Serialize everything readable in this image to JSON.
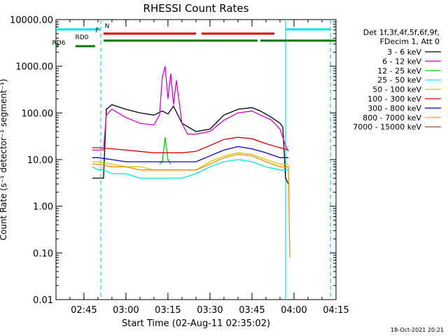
{
  "chart_data": {
    "type": "line",
    "title": "RHESSI Count Rates",
    "xlabel": "Start Time (02-Aug-11 02:35:02)",
    "ylabel": "Count Rate (s⁻¹ detector⁻¹ segment⁻¹)",
    "y_scale": "log",
    "ylim": [
      0.01,
      10000
    ],
    "xlim": [
      "02:35:02",
      "04:15"
    ],
    "x_ticks": [
      "02:45",
      "03:00",
      "03:15",
      "03:30",
      "03:45",
      "04:00",
      "04:15"
    ],
    "y_ticks": [
      "0.01",
      "0.10",
      "1.00",
      "10.00",
      "100.00",
      "1000.00",
      "10000.00"
    ],
    "legend_header": [
      "Det 1f,3f,4f,5f,6f,9f,",
      "FDecim 1, Att 0"
    ],
    "legend_position": "right",
    "timestamp": "18-Oct-2021 20:21",
    "series": [
      {
        "name": "3 - 6 keV",
        "color": "#000000",
        "x": [
          "02:48",
          "02:50",
          "02:52",
          "02:53",
          "02:55",
          "03:00",
          "03:05",
          "03:10",
          "03:13",
          "03:15",
          "03:17",
          "03:20",
          "03:25",
          "03:30",
          "03:35",
          "03:40",
          "03:45",
          "03:48",
          "03:52",
          "03:55",
          "03:56",
          "03:57",
          "03:58"
        ],
        "values": [
          4,
          4,
          4,
          120,
          150,
          120,
          100,
          90,
          110,
          95,
          140,
          60,
          40,
          45,
          90,
          120,
          130,
          110,
          80,
          60,
          50,
          4,
          3
        ]
      },
      {
        "name": "6 - 12 keV",
        "color": "#dd00dd",
        "x": [
          "02:48",
          "02:50",
          "02:52",
          "02:53",
          "02:55",
          "03:00",
          "03:05",
          "03:10",
          "03:12",
          "03:13",
          "03:14",
          "03:15",
          "03:16",
          "03:17",
          "03:18",
          "03:20",
          "03:22",
          "03:25",
          "03:30",
          "03:35",
          "03:40",
          "03:45",
          "03:48",
          "03:52",
          "03:55",
          "03:57",
          "03:58"
        ],
        "values": [
          16,
          16,
          16,
          90,
          120,
          80,
          60,
          55,
          90,
          600,
          1000,
          200,
          700,
          150,
          500,
          60,
          35,
          35,
          40,
          70,
          100,
          110,
          90,
          70,
          45,
          20,
          15
        ]
      },
      {
        "name": "12 - 25 keV",
        "color": "#00cc00",
        "x": [
          "03:12",
          "03:13",
          "03:14",
          "03:15",
          "03:16"
        ],
        "values": [
          8,
          9,
          30,
          10,
          8
        ]
      },
      {
        "name": "25 - 50 keV",
        "color": "#00e5e5",
        "x": [
          "02:48",
          "02:50",
          "02:52",
          "02:55",
          "03:00",
          "03:05",
          "03:10",
          "03:15",
          "03:20",
          "03:25",
          "03:30",
          "03:35",
          "03:40",
          "03:45",
          "03:50",
          "03:55",
          "03:58"
        ],
        "values": [
          7,
          6,
          6,
          5,
          5,
          4,
          4,
          4,
          4,
          5,
          7,
          9,
          10,
          9,
          7,
          6,
          6
        ]
      },
      {
        "name": "50 - 100 keV",
        "color": "#d6c800",
        "x": [
          "02:48",
          "02:50",
          "02:55",
          "03:00",
          "03:05",
          "03:10",
          "03:15",
          "03:20",
          "03:25",
          "03:30",
          "03:35",
          "03:40",
          "03:45",
          "03:50",
          "03:55",
          "03:58"
        ],
        "values": [
          9,
          9,
          8,
          7,
          7,
          6,
          6,
          6,
          6,
          9,
          12,
          14,
          13,
          10,
          8,
          8
        ]
      },
      {
        "name": "100 - 300 keV",
        "color": "#dd0000",
        "x": [
          "02:48",
          "02:50",
          "02:55",
          "03:00",
          "03:05",
          "03:10",
          "03:15",
          "03:20",
          "03:25",
          "03:30",
          "03:35",
          "03:40",
          "03:45",
          "03:50",
          "03:55",
          "03:58"
        ],
        "values": [
          18,
          18,
          17,
          16,
          15,
          14,
          14,
          14,
          15,
          20,
          27,
          30,
          28,
          22,
          18,
          16
        ]
      },
      {
        "name": "300 - 800 keV",
        "color": "#0000dd",
        "x": [
          "02:48",
          "02:50",
          "02:55",
          "03:00",
          "03:05",
          "03:10",
          "03:15",
          "03:20",
          "03:25",
          "03:30",
          "03:35",
          "03:40",
          "03:45",
          "03:50",
          "03:55",
          "03:58"
        ],
        "values": [
          11,
          11,
          10,
          9,
          9,
          9,
          9,
          9,
          9,
          12,
          16,
          19,
          17,
          14,
          11,
          11
        ]
      },
      {
        "name": "800 - 7000 keV",
        "color": "#ff8c00",
        "x": [
          "02:48",
          "02:50",
          "02:55",
          "03:00",
          "03:05",
          "03:10",
          "03:15",
          "03:20",
          "03:25",
          "03:30",
          "03:35",
          "03:40",
          "03:45",
          "03:50",
          "03:55",
          "03:58",
          "03:58.5"
        ],
        "values": [
          8,
          8,
          7,
          7,
          6,
          6,
          6,
          6,
          6,
          8,
          11,
          13,
          12,
          9,
          7,
          7,
          0.08
        ]
      },
      {
        "name": "7000 - 15000 keV",
        "color": "#8b3a1a",
        "x": [],
        "values": []
      }
    ],
    "annotations": [
      {
        "label": "N",
        "color": "#00e5e5",
        "segments": [
          [
            "02:35:02",
            "02:51"
          ],
          [
            "03:57",
            "04:13"
          ]
        ]
      },
      {
        "label": "F",
        "color": "#dd0000",
        "segments": [
          [
            "02:52",
            "03:25"
          ],
          [
            "03:27",
            "03:53"
          ]
        ]
      },
      {
        "label": "RD0",
        "color": "#007700",
        "segments": [
          [
            "02:52",
            "03:30"
          ],
          [
            "03:30",
            "03:47"
          ],
          [
            "03:48",
            "04:15"
          ]
        ]
      },
      {
        "label": "RD6",
        "color": "#007700",
        "segments": [
          [
            "02:35:02",
            "02:36"
          ],
          [
            "02:42",
            "02:49"
          ]
        ]
      }
    ],
    "vertical_lines": [
      {
        "time": "02:51",
        "color": "#00e5e5",
        "style": "dashed"
      },
      {
        "time": "03:57",
        "color": "#00e5e5",
        "style": "solid"
      },
      {
        "time": "04:13",
        "color": "#00e5e5",
        "style": "dashed"
      }
    ]
  }
}
